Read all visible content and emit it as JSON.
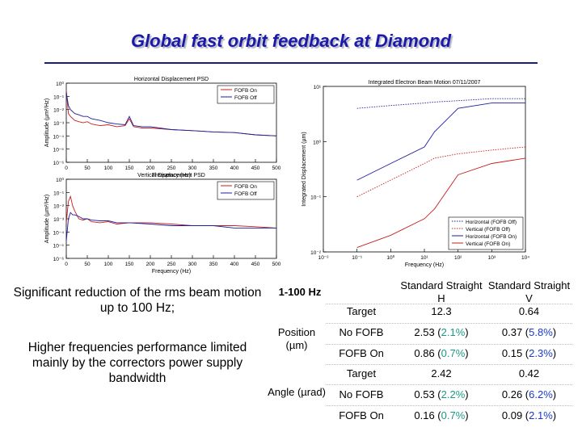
{
  "slide": {
    "title": "Global fast orbit feedback at Diamond"
  },
  "text": {
    "point1": "Significant reduction of the rms beam motion up to 100 Hz;",
    "point2": "Higher frequencies performance limited mainly by the correctors power supply bandwidth"
  },
  "table": {
    "corner": "1-100 Hz",
    "col_h": "Standard Straight H",
    "col_v": "Standard Straight V",
    "groups": [
      {
        "label": "Position (µm)",
        "rows": [
          {
            "label": "Target",
            "h": "12.3",
            "h_pct": "",
            "v": "0.64",
            "v_pct": ""
          },
          {
            "label": "No FOFB",
            "h": "2.53 (",
            "h_pct": "2.1%",
            "v": "0.37 (",
            "v_pct": "5.8%"
          },
          {
            "label": "FOFB On",
            "h": "0.86 (",
            "h_pct": "0.7%",
            "v": "0.15 (",
            "v_pct": "2.3%"
          }
        ]
      },
      {
        "label": "Angle (µrad)",
        "rows": [
          {
            "label": "Target",
            "h": "2.42",
            "h_pct": "",
            "v": "0.42",
            "v_pct": ""
          },
          {
            "label": "No FOFB",
            "h": "0.53 (",
            "h_pct": "2.2%",
            "v": "0.26 (",
            "v_pct": "6.2%"
          },
          {
            "label": "FOFB On",
            "h": "0.16 (",
            "h_pct": "0.7%",
            "v": "0.09 (",
            "v_pct": "2.1%"
          }
        ]
      }
    ]
  },
  "colors": {
    "on": "#c81e1e",
    "off": "#1e1ea0",
    "pct_green": "#1a9a86",
    "pct_blue": "#1a3ac8",
    "title": "#1a1aa6"
  },
  "chart_data": [
    {
      "type": "line",
      "title": "Horizontal Displacement PSD",
      "xlabel": "Frequency (Hz)",
      "ylabel": "Amplitude (µm²/Hz)",
      "xlim": [
        0,
        500
      ],
      "yscale": "log",
      "ylim": [
        1e-06,
        1
      ],
      "xticks": [
        0,
        50,
        100,
        150,
        200,
        250,
        300,
        350,
        400,
        450,
        500
      ],
      "legend": [
        "FOFB On",
        "FOFB Off"
      ],
      "legend_position": "top-right",
      "series": [
        {
          "name": "FOFB On",
          "color": "#c81e1e",
          "x": [
            0,
            5,
            10,
            20,
            30,
            40,
            50,
            60,
            80,
            100,
            120,
            140,
            150,
            160,
            180,
            200,
            250,
            300,
            350,
            400,
            450,
            500
          ],
          "y": [
            0.3,
            0.005,
            0.003,
            0.0015,
            0.0012,
            0.001,
            0.0012,
            0.0008,
            0.0006,
            0.0007,
            0.0005,
            0.0006,
            0.002,
            0.0005,
            0.0004,
            0.0004,
            0.0003,
            0.00025,
            0.0002,
            0.00018,
            0.00012,
            0.0001
          ]
        },
        {
          "name": "FOFB Off",
          "color": "#1e1ea0",
          "x": [
            0,
            5,
            10,
            20,
            30,
            40,
            50,
            60,
            80,
            100,
            120,
            140,
            150,
            160,
            180,
            200,
            250,
            300,
            350,
            400,
            450,
            500
          ],
          "y": [
            0.2,
            0.02,
            0.01,
            0.005,
            0.004,
            0.003,
            0.003,
            0.002,
            0.0015,
            0.001,
            0.0008,
            0.0007,
            0.003,
            0.0006,
            0.0005,
            0.0005,
            0.0003,
            0.00025,
            0.0002,
            0.00018,
            0.00012,
            0.0001
          ]
        }
      ]
    },
    {
      "type": "line",
      "title": "Vertical Displacement PSD",
      "xlabel": "Frequency (Hz)",
      "ylabel": "Amplitude (µm²/Hz)",
      "xlim": [
        0,
        500
      ],
      "yscale": "log",
      "ylim": [
        1e-06,
        1
      ],
      "xticks": [
        0,
        50,
        100,
        150,
        200,
        250,
        300,
        350,
        400,
        450,
        500
      ],
      "legend": [
        "FOFB On",
        "FOFB Off"
      ],
      "legend_position": "top-right",
      "series": [
        {
          "name": "FOFB On",
          "color": "#c81e1e",
          "x": [
            0,
            5,
            10,
            15,
            20,
            30,
            40,
            50,
            60,
            80,
            100,
            120,
            150,
            200,
            250,
            300,
            350,
            400,
            450,
            500
          ],
          "y": [
            0.0005,
            0.02,
            0.05,
            0.01,
            0.004,
            0.001,
            0.0008,
            0.001,
            0.0006,
            0.0005,
            0.0006,
            0.0004,
            0.0005,
            0.0005,
            0.0004,
            0.0003,
            0.0003,
            0.0003,
            0.00025,
            0.0002
          ]
        },
        {
          "name": "FOFB Off",
          "color": "#1e1ea0",
          "x": [
            0,
            5,
            10,
            15,
            20,
            30,
            40,
            50,
            60,
            80,
            100,
            120,
            150,
            200,
            250,
            300,
            350,
            400,
            450,
            500
          ],
          "y": [
            2e-05,
            0.001,
            0.003,
            0.002,
            0.002,
            0.0015,
            0.001,
            0.001,
            0.0008,
            0.0007,
            0.0007,
            0.0005,
            0.0005,
            0.0004,
            0.0003,
            0.0003,
            0.0003,
            0.0002,
            0.0002,
            0.0002
          ]
        }
      ]
    },
    {
      "type": "line",
      "title": "Integrated Electron Beam Motion 07/11/2007",
      "xlabel": "Frequency (Hz)",
      "ylabel": "Integrated Displacement (µm)",
      "xscale": "log",
      "yscale": "log",
      "xlim": [
        0.01,
        10000
      ],
      "ylim": [
        0.01,
        10
      ],
      "legend": [
        "Horizontal (FOFB Off)",
        "Vertical (FOFB Off)",
        "Horizontal (FOFB On)",
        "Vertical (FOFB On)"
      ],
      "legend_position": "bottom-right",
      "series": [
        {
          "name": "Horizontal (FOFB Off)",
          "color": "#1e1ea0",
          "style": "dotted",
          "x": [
            0.1,
            1,
            10,
            20,
            100,
            1000,
            10000
          ],
          "y": [
            4,
            4.5,
            5,
            5.2,
            5.5,
            6,
            6
          ]
        },
        {
          "name": "Vertical (FOFB Off)",
          "color": "#c81e1e",
          "style": "dotted",
          "x": [
            0.1,
            1,
            10,
            20,
            100,
            1000,
            10000
          ],
          "y": [
            0.1,
            0.2,
            0.4,
            0.5,
            0.6,
            0.7,
            0.8
          ]
        },
        {
          "name": "Horizontal (FOFB On)",
          "color": "#1e1ea0",
          "style": "solid",
          "x": [
            0.1,
            1,
            10,
            20,
            100,
            1000,
            10000
          ],
          "y": [
            0.2,
            0.4,
            0.8,
            1.5,
            4,
            5,
            5
          ]
        },
        {
          "name": "Vertical (FOFB On)",
          "color": "#c81e1e",
          "style": "solid",
          "x": [
            0.1,
            1,
            10,
            20,
            100,
            1000,
            10000
          ],
          "y": [
            0.012,
            0.02,
            0.04,
            0.06,
            0.25,
            0.4,
            0.5
          ]
        }
      ]
    }
  ]
}
